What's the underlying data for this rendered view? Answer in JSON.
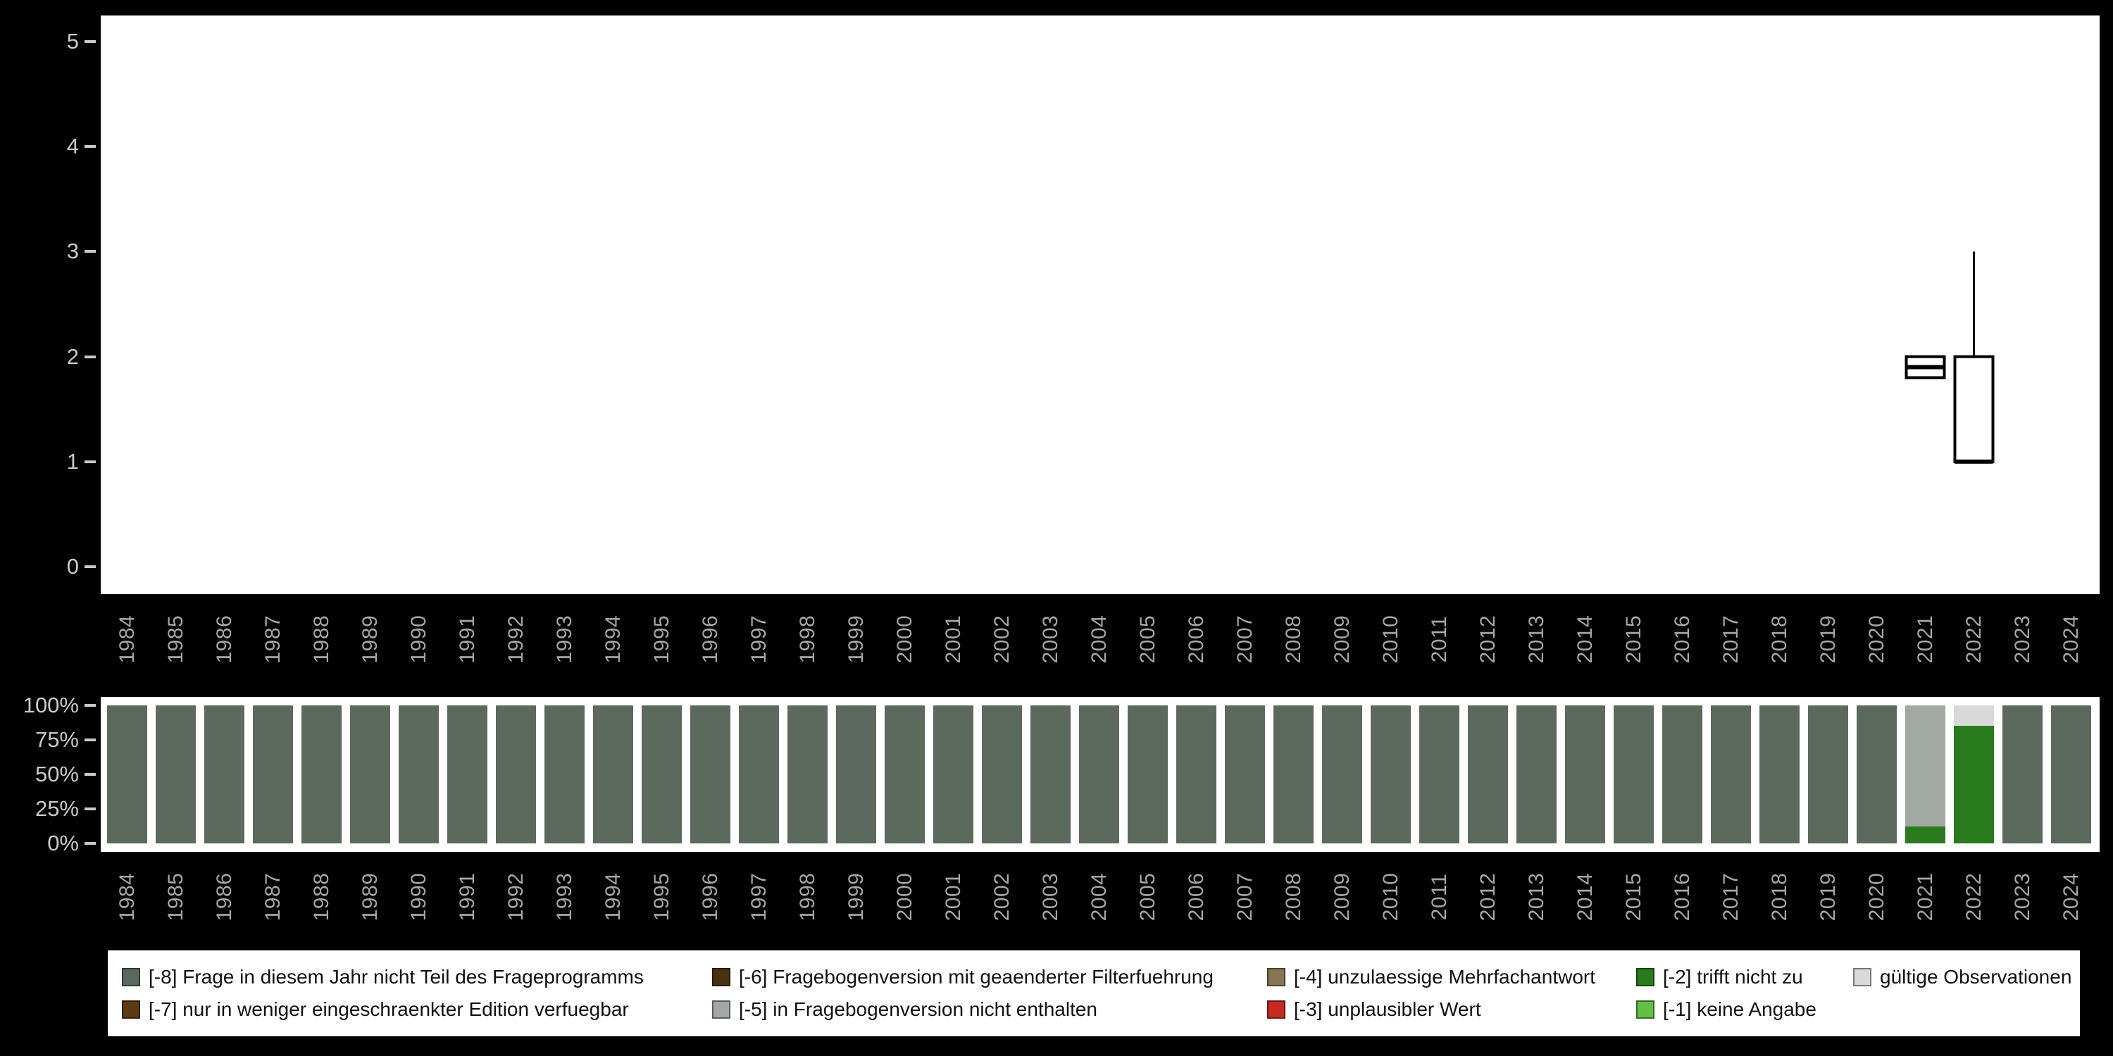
{
  "palette": {
    "-8": "#5c6a5d",
    "-7": "#5d3a12",
    "-6": "#4b3013",
    "-5": "#a2a8a2",
    "-4": "#867656",
    "-3": "#c62b21",
    "-2": "#2a7a1e",
    "-1": "#63be45",
    "valid": "#d9d9d9",
    "background": "#000000",
    "panel": "#ffffff",
    "axis_text": "#c9c9c9",
    "year_text": "#a6a6a6",
    "box_stroke": "#000000"
  },
  "chart_data": [
    {
      "type": "boxplot",
      "title": "",
      "xlabel": "",
      "ylabel": "",
      "ylim": [
        0,
        5
      ],
      "y_ticks": [
        "5",
        "4",
        "3",
        "2",
        "1",
        "0"
      ],
      "x_tick_rotation": -90,
      "x_categories": [
        "1984",
        "1985",
        "1986",
        "1987",
        "1988",
        "1989",
        "1990",
        "1991",
        "1992",
        "1993",
        "1994",
        "1995",
        "1996",
        "1997",
        "1998",
        "1999",
        "2000",
        "2001",
        "2002",
        "2003",
        "2004",
        "2005",
        "2006",
        "2007",
        "2008",
        "2009",
        "2010",
        "2011",
        "2012",
        "2013",
        "2014",
        "2015",
        "2016",
        "2017",
        "2018",
        "2019",
        "2020",
        "2021",
        "2022",
        "2023",
        "2024"
      ],
      "series": [
        {
          "x": "2021",
          "whisker_low": 1.8,
          "q1": 1.8,
          "median": 1.9,
          "q3": 2.0,
          "whisker_high": 2.0
        },
        {
          "x": "2022",
          "whisker_low": 1.0,
          "q1": 1.0,
          "median": 1.0,
          "q3": 2.0,
          "whisker_high": 3.0
        }
      ]
    },
    {
      "type": "bar",
      "stacked": true,
      "units": "percent",
      "title": "",
      "xlabel": "",
      "ylabel": "",
      "ylim": [
        0,
        100
      ],
      "y_ticks": [
        "100%",
        "75%",
        "50%",
        "25%",
        "0%"
      ],
      "x_tick_rotation": -90,
      "x_categories": [
        "1984",
        "1985",
        "1986",
        "1987",
        "1988",
        "1989",
        "1990",
        "1991",
        "1992",
        "1993",
        "1994",
        "1995",
        "1996",
        "1997",
        "1998",
        "1999",
        "2000",
        "2001",
        "2002",
        "2003",
        "2004",
        "2005",
        "2006",
        "2007",
        "2008",
        "2009",
        "2010",
        "2011",
        "2012",
        "2013",
        "2014",
        "2015",
        "2016",
        "2017",
        "2018",
        "2019",
        "2020",
        "2021",
        "2022",
        "2023",
        "2024"
      ],
      "bars": [
        {
          "year": "1984",
          "segments": [
            {
              "code": "-8",
              "pct": 100
            }
          ]
        },
        {
          "year": "1985",
          "segments": [
            {
              "code": "-8",
              "pct": 100
            }
          ]
        },
        {
          "year": "1986",
          "segments": [
            {
              "code": "-8",
              "pct": 100
            }
          ]
        },
        {
          "year": "1987",
          "segments": [
            {
              "code": "-8",
              "pct": 100
            }
          ]
        },
        {
          "year": "1988",
          "segments": [
            {
              "code": "-8",
              "pct": 100
            }
          ]
        },
        {
          "year": "1989",
          "segments": [
            {
              "code": "-8",
              "pct": 100
            }
          ]
        },
        {
          "year": "1990",
          "segments": [
            {
              "code": "-8",
              "pct": 100
            }
          ]
        },
        {
          "year": "1991",
          "segments": [
            {
              "code": "-8",
              "pct": 100
            }
          ]
        },
        {
          "year": "1992",
          "segments": [
            {
              "code": "-8",
              "pct": 100
            }
          ]
        },
        {
          "year": "1993",
          "segments": [
            {
              "code": "-8",
              "pct": 100
            }
          ]
        },
        {
          "year": "1994",
          "segments": [
            {
              "code": "-8",
              "pct": 100
            }
          ]
        },
        {
          "year": "1995",
          "segments": [
            {
              "code": "-8",
              "pct": 100
            }
          ]
        },
        {
          "year": "1996",
          "segments": [
            {
              "code": "-8",
              "pct": 100
            }
          ]
        },
        {
          "year": "1997",
          "segments": [
            {
              "code": "-8",
              "pct": 100
            }
          ]
        },
        {
          "year": "1998",
          "segments": [
            {
              "code": "-8",
              "pct": 100
            }
          ]
        },
        {
          "year": "1999",
          "segments": [
            {
              "code": "-8",
              "pct": 100
            }
          ]
        },
        {
          "year": "2000",
          "segments": [
            {
              "code": "-8",
              "pct": 100
            }
          ]
        },
        {
          "year": "2001",
          "segments": [
            {
              "code": "-8",
              "pct": 100
            }
          ]
        },
        {
          "year": "2002",
          "segments": [
            {
              "code": "-8",
              "pct": 100
            }
          ]
        },
        {
          "year": "2003",
          "segments": [
            {
              "code": "-8",
              "pct": 100
            }
          ]
        },
        {
          "year": "2004",
          "segments": [
            {
              "code": "-8",
              "pct": 100
            }
          ]
        },
        {
          "year": "2005",
          "segments": [
            {
              "code": "-8",
              "pct": 100
            }
          ]
        },
        {
          "year": "2006",
          "segments": [
            {
              "code": "-8",
              "pct": 100
            }
          ]
        },
        {
          "year": "2007",
          "segments": [
            {
              "code": "-8",
              "pct": 100
            }
          ]
        },
        {
          "year": "2008",
          "segments": [
            {
              "code": "-8",
              "pct": 100
            }
          ]
        },
        {
          "year": "2009",
          "segments": [
            {
              "code": "-8",
              "pct": 100
            }
          ]
        },
        {
          "year": "2010",
          "segments": [
            {
              "code": "-8",
              "pct": 100
            }
          ]
        },
        {
          "year": "2011",
          "segments": [
            {
              "code": "-8",
              "pct": 100
            }
          ]
        },
        {
          "year": "2012",
          "segments": [
            {
              "code": "-8",
              "pct": 100
            }
          ]
        },
        {
          "year": "2013",
          "segments": [
            {
              "code": "-8",
              "pct": 100
            }
          ]
        },
        {
          "year": "2014",
          "segments": [
            {
              "code": "-8",
              "pct": 100
            }
          ]
        },
        {
          "year": "2015",
          "segments": [
            {
              "code": "-8",
              "pct": 100
            }
          ]
        },
        {
          "year": "2016",
          "segments": [
            {
              "code": "-8",
              "pct": 100
            }
          ]
        },
        {
          "year": "2017",
          "segments": [
            {
              "code": "-8",
              "pct": 100
            }
          ]
        },
        {
          "year": "2018",
          "segments": [
            {
              "code": "-8",
              "pct": 100
            }
          ]
        },
        {
          "year": "2019",
          "segments": [
            {
              "code": "-8",
              "pct": 100
            }
          ]
        },
        {
          "year": "2020",
          "segments": [
            {
              "code": "-8",
              "pct": 100
            }
          ]
        },
        {
          "year": "2021",
          "segments": [
            {
              "code": "-2",
              "pct": 12
            },
            {
              "code": "-5",
              "pct": 88
            }
          ]
        },
        {
          "year": "2022",
          "segments": [
            {
              "code": "-2",
              "pct": 85
            },
            {
              "code": "valid",
              "pct": 15
            }
          ]
        },
        {
          "year": "2023",
          "segments": [
            {
              "code": "-8",
              "pct": 100
            }
          ]
        },
        {
          "year": "2024",
          "segments": [
            {
              "code": "-8",
              "pct": 100
            }
          ]
        }
      ]
    }
  ],
  "legend": {
    "position": "bottom",
    "items": [
      {
        "code": "-8",
        "label": "[-8] Frage in diesem Jahr nicht Teil des Frageprogramms"
      },
      {
        "code": "-6",
        "label": "[-6] Fragebogenversion mit geaenderter Filterfuehrung"
      },
      {
        "code": "-4",
        "label": "[-4] unzulaessige Mehrfachantwort"
      },
      {
        "code": "-2",
        "label": "[-2] trifft nicht zu"
      },
      {
        "code": "valid",
        "label": "gültige Observationen"
      },
      {
        "code": "-7",
        "label": "[-7] nur in weniger eingeschraenkter Edition verfuegbar"
      },
      {
        "code": "-5",
        "label": "[-5] in Fragebogenversion nicht enthalten"
      },
      {
        "code": "-3",
        "label": "[-3] unplausibler Wert"
      },
      {
        "code": "-1",
        "label": "[-1] keine Angabe"
      }
    ]
  }
}
